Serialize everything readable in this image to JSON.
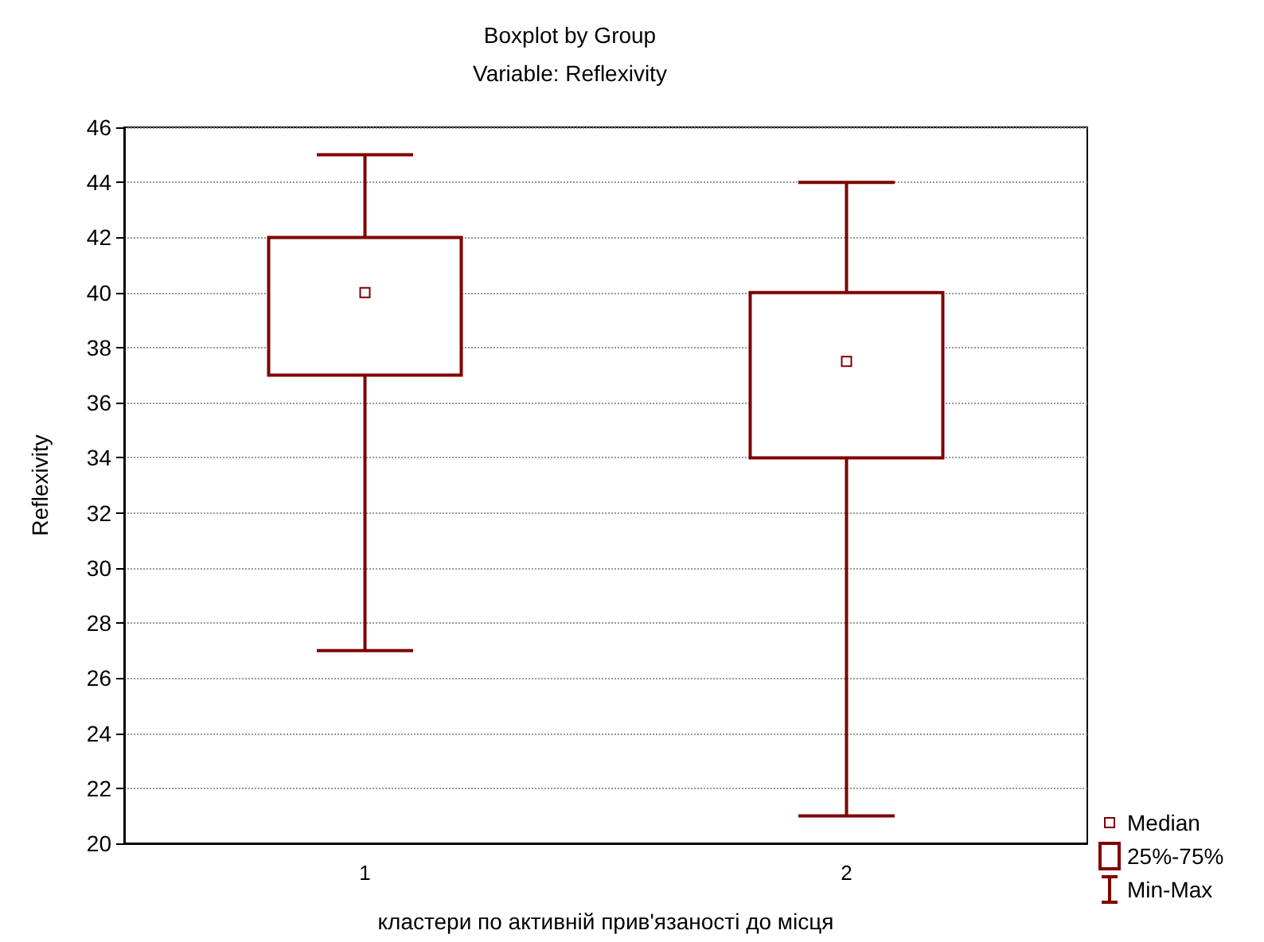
{
  "chart_data": {
    "type": "box",
    "title": "Boxplot by Group",
    "subtitle": "Variable: Reflexivity",
    "xlabel": "кластери по активній прив'язаності до місця",
    "ylabel": "Reflexivity",
    "categories": [
      "1",
      "2"
    ],
    "series": [
      {
        "color": "#800000",
        "boxes": [
          {
            "low": 27,
            "q1": 37,
            "median": 40,
            "q3": 42,
            "high": 45
          },
          {
            "low": 21,
            "q1": 34,
            "median": 37.5,
            "q3": 40,
            "high": 44
          }
        ]
      }
    ],
    "ylim": [
      20,
      46
    ],
    "yticks": [
      20,
      22,
      24,
      26,
      28,
      30,
      32,
      34,
      36,
      38,
      40,
      42,
      44,
      46
    ],
    "grid": "y",
    "marker": "square",
    "annotations": [
      "Median",
      "25%-75%",
      "Min-Max"
    ]
  }
}
